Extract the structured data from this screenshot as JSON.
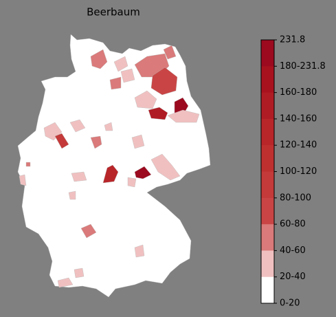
{
  "title": "Beerbaum",
  "colorbar": {
    "labels": [
      "231.8",
      "180-231.8",
      "160-180",
      "140-160",
      "120-140",
      "100-120",
      "80-100",
      "60-80",
      "40-60",
      "20-40",
      "0-20"
    ],
    "colors": [
      "#9b0a1f",
      "#a8121f",
      "#b01c24",
      "#b8262a",
      "#be3030",
      "#c43a3a",
      "#c94545",
      "#da7a7a",
      "#f0c0c0",
      "#ffffff"
    ]
  }
}
